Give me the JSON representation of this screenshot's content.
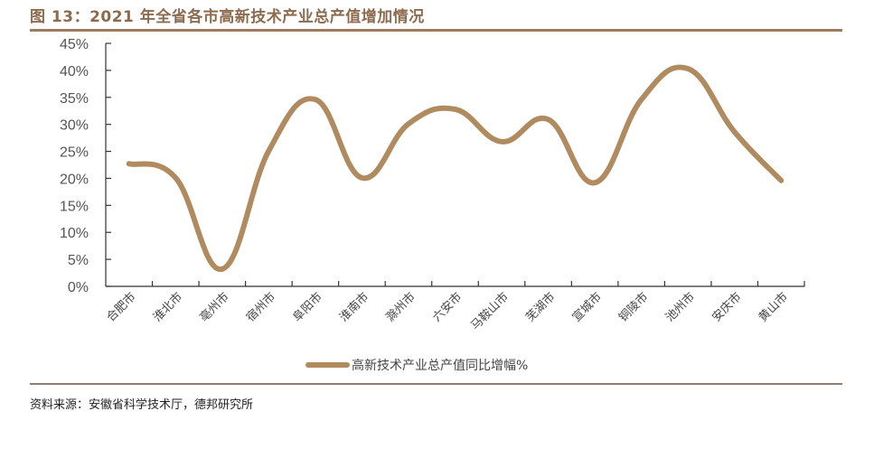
{
  "header": {
    "title": "图 13：2021 年全省各市高新技术产业总产值增加情况"
  },
  "footer": {
    "source": "资料来源：安徽省科学技术厅，德邦研究所"
  },
  "colors": {
    "title": "#8c6b4f",
    "rule": "#9b7c62",
    "line": "#b08b60",
    "axis": "#333333"
  },
  "chart_data": {
    "type": "line",
    "title": "图 13：2021 年全省各市高新技术产业总产值增加情况",
    "xlabel": "",
    "ylabel": "",
    "ylim": [
      0,
      45
    ],
    "yticks": [
      "0%",
      "5%",
      "10%",
      "15%",
      "20%",
      "25%",
      "30%",
      "35%",
      "40%",
      "45%"
    ],
    "grid": false,
    "smooth": true,
    "legend_position": "bottom",
    "categories": [
      "合肥市",
      "淮北市",
      "亳州市",
      "宿州市",
      "阜阳市",
      "淮南市",
      "滁州市",
      "六安市",
      "马鞍山市",
      "芜湖市",
      "宣城市",
      "铜陵市",
      "池州市",
      "安庆市",
      "黄山市"
    ],
    "series": [
      {
        "name": "高新技术产业总产值同比增幅%",
        "values": [
          22.7,
          20.1,
          3.2,
          25.1,
          34.6,
          20.1,
          30.1,
          32.8,
          26.8,
          30.9,
          19.2,
          34.6,
          40.3,
          28.6,
          19.6
        ]
      }
    ]
  }
}
